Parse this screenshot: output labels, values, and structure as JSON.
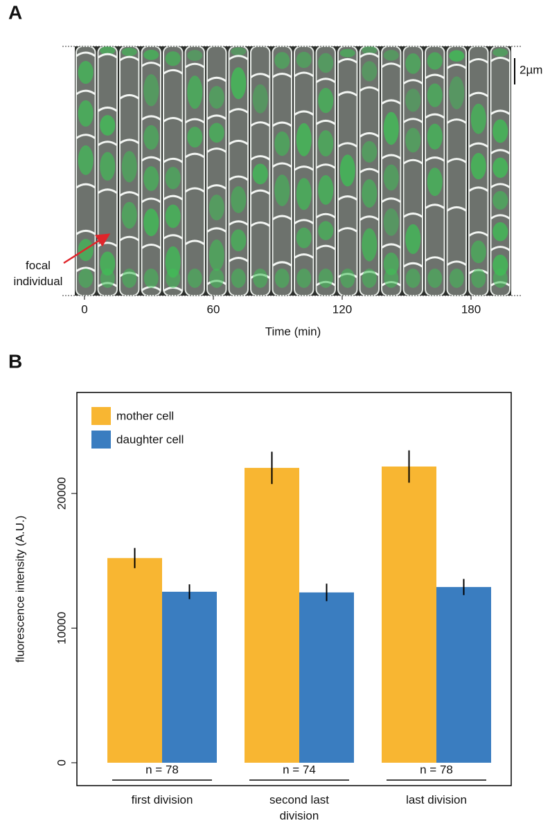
{
  "chart_data": [
    {
      "type": "image",
      "panel": "A",
      "xlabel": "Time (min)",
      "xlim": [
        -4.5,
        198.7
      ],
      "xticks": [
        0,
        60,
        120,
        180
      ],
      "scale_bar_label": "2µm",
      "annotation": "focal individual"
    },
    {
      "type": "bar",
      "panel": "B",
      "ylabel": "fluorescence intensity (A.U.)",
      "categories": [
        "first division",
        "second last division",
        "last division"
      ],
      "series": [
        {
          "name": "mother cell",
          "color": "#f8b632",
          "values": [
            15200,
            21900,
            22000
          ],
          "errors": [
            750,
            1200,
            1200
          ]
        },
        {
          "name": "daughter cell",
          "color": "#3a7dc0",
          "values": [
            12700,
            12650,
            13050
          ],
          "errors": [
            550,
            650,
            600
          ]
        }
      ],
      "n_labels": [
        "n = 78",
        "n = 74",
        "n = 78"
      ],
      "ylim": [
        -1700,
        27500
      ],
      "yticks": [
        0,
        10000,
        20000
      ],
      "legend": "upper left"
    }
  ]
}
